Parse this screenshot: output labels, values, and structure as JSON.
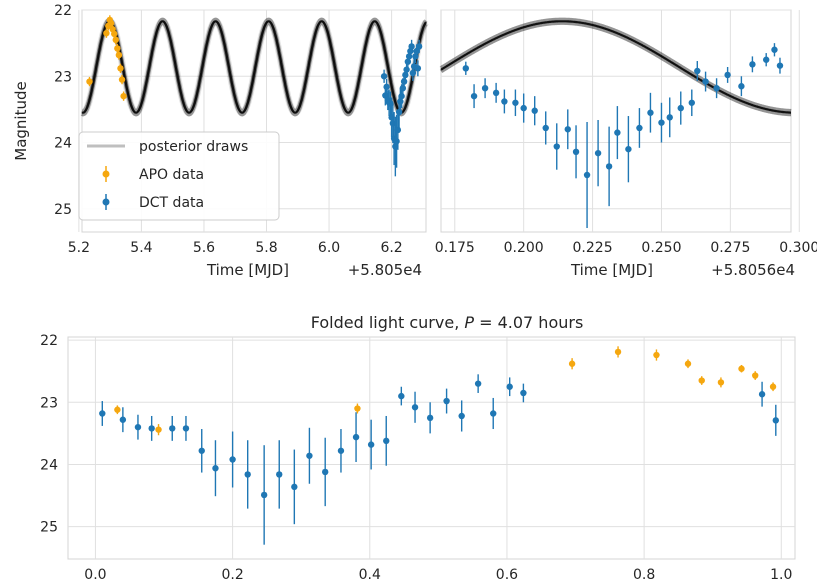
{
  "colors": {
    "apo": "#f5a70f",
    "dct": "#1f77b4",
    "posterior": "#000000",
    "grid": "#e0e0e0",
    "text": "#262626"
  },
  "chart_data": [
    {
      "type": "scatter",
      "panel": "top-left",
      "title": "",
      "xlabel": "Time [MJD]",
      "ylabel": "Magnitude",
      "x_offset_label": "+5.805e4",
      "xlim": [
        5.21,
        6.31
      ],
      "ylim": [
        25.35,
        22.0
      ],
      "y_inverted": true,
      "xticks": [
        5.2,
        5.4,
        5.6,
        5.8,
        6.0,
        6.2
      ],
      "xtick_labels": [
        "5.2",
        "5.4",
        "5.6",
        "5.8",
        "6.0",
        "6.2"
      ],
      "yticks": [
        22,
        23,
        24,
        25
      ],
      "ytick_labels": [
        "22",
        "23",
        "24",
        "25"
      ],
      "grid": true,
      "legend": {
        "placement": "lower-left",
        "entries": [
          "posterior draws",
          "APO data",
          "DCT data"
        ]
      },
      "model": {
        "name": "posterior draws",
        "period_days": 0.1696,
        "mean_mag": 22.86,
        "amplitude": 0.69,
        "peak_time": 5.298
      },
      "series": [
        {
          "name": "APO data",
          "points": [
            [
              5.234,
              23.08,
              0.07
            ],
            [
              5.288,
              22.35,
              0.07
            ],
            [
              5.294,
              22.24,
              0.07
            ],
            [
              5.299,
              22.15,
              0.07
            ],
            [
              5.303,
              22.2,
              0.07
            ],
            [
              5.308,
              22.29,
              0.07
            ],
            [
              5.313,
              22.36,
              0.07
            ],
            [
              5.318,
              22.45,
              0.07
            ],
            [
              5.323,
              22.58,
              0.07
            ],
            [
              5.328,
              22.68,
              0.07
            ],
            [
              5.333,
              22.88,
              0.07
            ],
            [
              5.338,
              23.05,
              0.07
            ],
            [
              5.343,
              23.3,
              0.07
            ]
          ]
        },
        {
          "name": "DCT data",
          "points": [
            [
              6.176,
              23.0,
              0.1
            ],
            [
              6.18,
              23.29,
              0.15
            ],
            [
              6.184,
              23.16,
              0.12
            ],
            [
              6.188,
              23.36,
              0.15
            ],
            [
              6.192,
              23.4,
              0.2
            ],
            [
              6.196,
              23.41,
              0.18
            ],
            [
              6.2,
              23.62,
              0.3
            ],
            [
              6.204,
              23.71,
              0.3
            ],
            [
              6.208,
              23.94,
              0.4
            ],
            [
              6.212,
              24.06,
              0.45
            ],
            [
              6.216,
              23.98,
              0.4
            ],
            [
              6.22,
              23.81,
              0.3
            ],
            [
              6.224,
              23.54,
              0.25
            ],
            [
              6.228,
              23.38,
              0.2
            ],
            [
              6.232,
              23.3,
              0.18
            ],
            [
              6.236,
              23.18,
              0.15
            ],
            [
              6.24,
              23.08,
              0.12
            ],
            [
              6.244,
              22.98,
              0.12
            ],
            [
              6.248,
              22.9,
              0.12
            ],
            [
              6.252,
              22.78,
              0.1
            ],
            [
              6.256,
              22.7,
              0.1
            ],
            [
              6.26,
              22.62,
              0.1
            ],
            [
              6.264,
              22.55,
              0.1
            ],
            [
              6.268,
              22.95,
              0.12
            ],
            [
              6.272,
              22.85,
              0.12
            ],
            [
              6.276,
              22.7,
              0.1
            ],
            [
              6.28,
              22.62,
              0.1
            ],
            [
              6.284,
              22.88,
              0.12
            ],
            [
              6.288,
              22.55,
              0.1
            ]
          ]
        }
      ]
    },
    {
      "type": "scatter",
      "panel": "top-right",
      "title": "",
      "xlabel": "Time [MJD]",
      "ylabel": "",
      "x_offset_label": "+5.8056e4",
      "xlim": [
        0.17,
        0.297
      ],
      "ylim": [
        25.35,
        22.0
      ],
      "y_inverted": true,
      "xticks": [
        0.175,
        0.2,
        0.225,
        0.25,
        0.275,
        0.3
      ],
      "xtick_labels": [
        "0.175",
        "0.200",
        "0.225",
        "0.250",
        "0.275",
        "0.300"
      ],
      "grid": true,
      "model": {
        "name": "posterior draws",
        "period_days": 0.1696,
        "mean_mag": 22.86,
        "amplitude": 0.69,
        "peak_time": 5.298,
        "time_offset": -0.844
      },
      "series": [
        {
          "name": "DCT data",
          "points": [
            [
              0.179,
              22.88,
              0.1
            ],
            [
              0.182,
              23.3,
              0.18
            ],
            [
              0.186,
              23.18,
              0.15
            ],
            [
              0.19,
              23.25,
              0.15
            ],
            [
              0.193,
              23.38,
              0.18
            ],
            [
              0.197,
              23.4,
              0.2
            ],
            [
              0.2,
              23.48,
              0.22
            ],
            [
              0.204,
              23.52,
              0.22
            ],
            [
              0.208,
              23.78,
              0.25
            ],
            [
              0.212,
              24.06,
              0.35
            ],
            [
              0.216,
              23.8,
              0.3
            ],
            [
              0.219,
              24.14,
              0.4
            ],
            [
              0.223,
              24.49,
              0.8
            ],
            [
              0.227,
              24.16,
              0.5
            ],
            [
              0.231,
              24.36,
              0.6
            ],
            [
              0.234,
              23.85,
              0.4
            ],
            [
              0.238,
              24.1,
              0.5
            ],
            [
              0.242,
              23.78,
              0.3
            ],
            [
              0.246,
              23.55,
              0.3
            ],
            [
              0.25,
              23.7,
              0.3
            ],
            [
              0.253,
              23.62,
              0.3
            ],
            [
              0.257,
              23.48,
              0.25
            ],
            [
              0.261,
              23.4,
              0.2
            ],
            [
              0.263,
              22.92,
              0.15
            ],
            [
              0.266,
              23.08,
              0.15
            ],
            [
              0.27,
              23.18,
              0.15
            ],
            [
              0.274,
              22.98,
              0.12
            ],
            [
              0.279,
              23.15,
              0.15
            ],
            [
              0.283,
              22.82,
              0.12
            ],
            [
              0.288,
              22.75,
              0.1
            ],
            [
              0.291,
              22.6,
              0.1
            ],
            [
              0.293,
              22.84,
              0.12
            ]
          ]
        }
      ]
    },
    {
      "type": "scatter",
      "panel": "bottom",
      "title": "Folded light curve, P = 4.07 hours",
      "xlabel": "",
      "ylabel": "",
      "xlim": [
        -0.04,
        1.02
      ],
      "ylim": [
        25.52,
        21.95
      ],
      "y_inverted": true,
      "xticks": [
        0.0,
        0.2,
        0.4,
        0.6,
        0.8,
        1.0
      ],
      "xtick_labels": [
        "0.0",
        "0.2",
        "0.4",
        "0.6",
        "0.8",
        "1.0"
      ],
      "yticks": [
        22,
        23,
        24,
        25
      ],
      "ytick_labels": [
        "22",
        "23",
        "24",
        "25"
      ],
      "grid": true,
      "series": [
        {
          "name": "APO data",
          "points": [
            [
              0.032,
              23.12,
              0.07
            ],
            [
              0.092,
              23.44,
              0.09
            ],
            [
              0.382,
              23.1,
              0.08
            ],
            [
              0.695,
              22.38,
              0.09
            ],
            [
              0.762,
              22.19,
              0.09
            ],
            [
              0.818,
              22.24,
              0.09
            ],
            [
              0.864,
              22.38,
              0.07
            ],
            [
              0.884,
              22.65,
              0.07
            ],
            [
              0.912,
              22.68,
              0.08
            ],
            [
              0.942,
              22.46,
              0.06
            ],
            [
              0.962,
              22.57,
              0.07
            ],
            [
              0.988,
              22.75,
              0.07
            ]
          ]
        },
        {
          "name": "DCT data",
          "points": [
            [
              0.01,
              23.18,
              0.2
            ],
            [
              0.04,
              23.28,
              0.2
            ],
            [
              0.062,
              23.4,
              0.2
            ],
            [
              0.082,
              23.42,
              0.2
            ],
            [
              0.112,
              23.42,
              0.2
            ],
            [
              0.132,
              23.42,
              0.2
            ],
            [
              0.155,
              23.78,
              0.35
            ],
            [
              0.175,
              24.06,
              0.45
            ],
            [
              0.2,
              23.92,
              0.45
            ],
            [
              0.222,
              24.16,
              0.55
            ],
            [
              0.246,
              24.49,
              0.8
            ],
            [
              0.268,
              24.16,
              0.55
            ],
            [
              0.29,
              24.36,
              0.6
            ],
            [
              0.312,
              23.86,
              0.45
            ],
            [
              0.335,
              24.12,
              0.55
            ],
            [
              0.358,
              23.78,
              0.35
            ],
            [
              0.38,
              23.56,
              0.4
            ],
            [
              0.402,
              23.68,
              0.4
            ],
            [
              0.424,
              23.62,
              0.4
            ],
            [
              0.446,
              22.9,
              0.15
            ],
            [
              0.466,
              23.08,
              0.25
            ],
            [
              0.488,
              23.25,
              0.25
            ],
            [
              0.512,
              22.98,
              0.2
            ],
            [
              0.534,
              23.22,
              0.25
            ],
            [
              0.558,
              22.7,
              0.15
            ],
            [
              0.58,
              23.18,
              0.25
            ],
            [
              0.604,
              22.75,
              0.15
            ],
            [
              0.624,
              22.85,
              0.15
            ],
            [
              0.972,
              22.87,
              0.2
            ],
            [
              0.992,
              23.29,
              0.25
            ]
          ]
        }
      ]
    }
  ]
}
